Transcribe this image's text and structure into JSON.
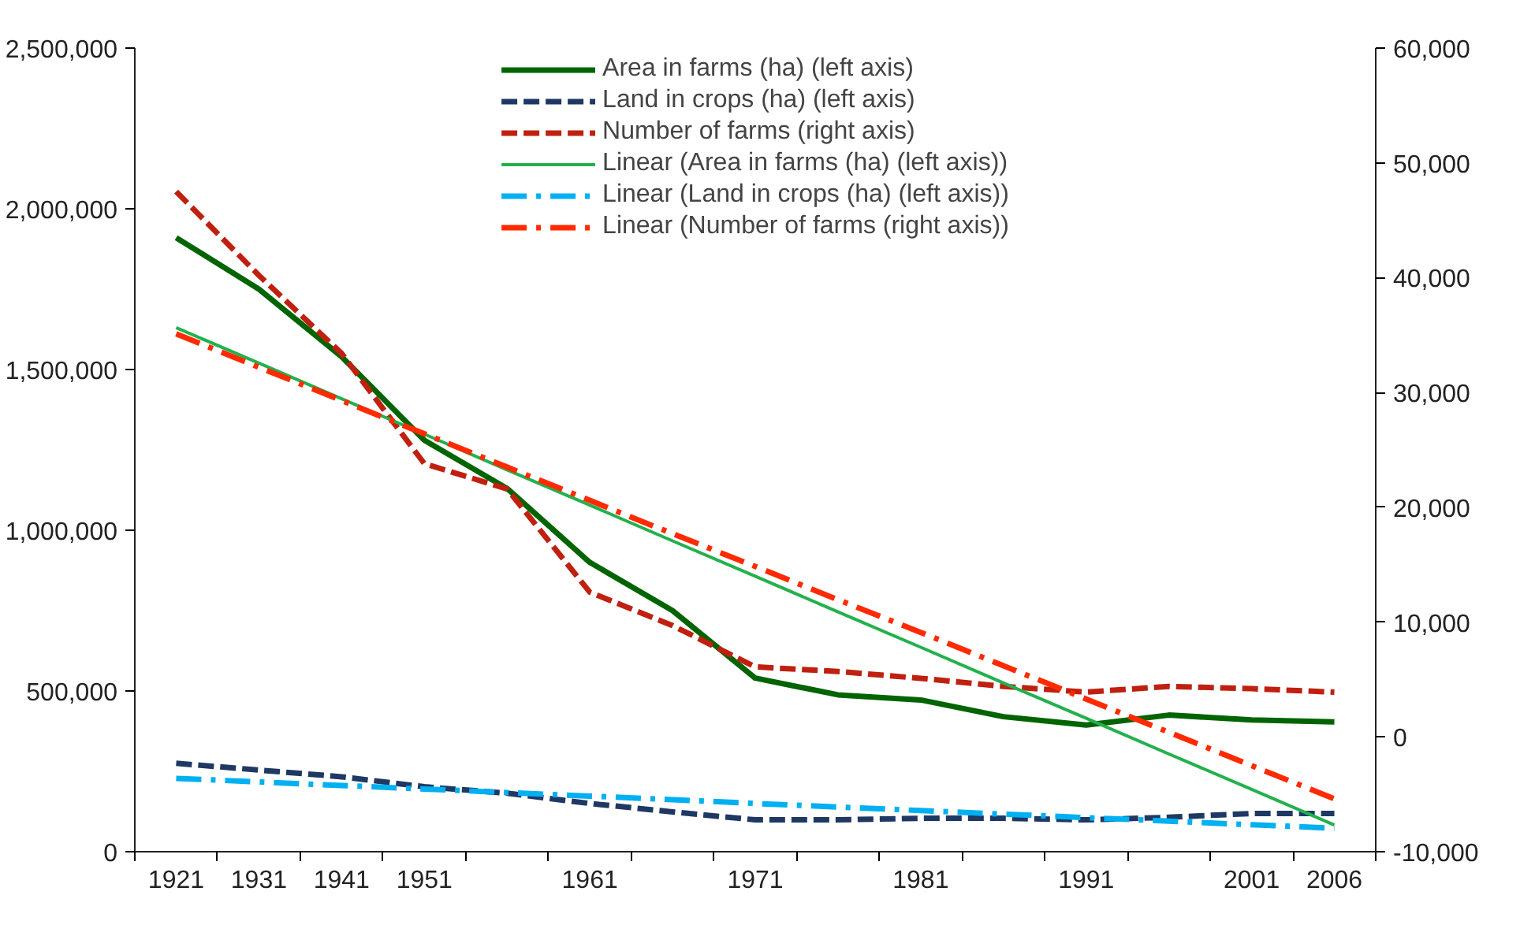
{
  "chart_data": {
    "type": "line",
    "categories": [
      "1921",
      "1931",
      "1941",
      "1951",
      null,
      "1961",
      null,
      "1971",
      null,
      "1981",
      null,
      "1991",
      null,
      "2001",
      "2006"
    ],
    "series": [
      {
        "name": "Area in farms (ha) (left axis)",
        "color": "#006400",
        "line_style": "solid",
        "values": [
          1910000,
          1750000,
          1540000,
          1280000,
          1130000,
          900000,
          750000,
          540000,
          488000,
          472000,
          420000,
          394000,
          425000,
          410000,
          404000
        ]
      },
      {
        "name": "Land in crops (ha) (left axis)",
        "color": "#1f3864",
        "line_style": "dashed",
        "values": [
          275000,
          254000,
          233000,
          202000,
          182000,
          150000,
          124000,
          99000,
          99000,
          104000,
          104000,
          99000,
          107000,
          119000,
          119000
        ]
      },
      {
        "name": "Number of farms (right axis)",
        "color": "#c0200f",
        "line_style": "dashed",
        "axis": "y2",
        "values": [
          47500,
          40200,
          33400,
          23800,
          21600,
          12600,
          9700,
          6100,
          5700,
          5100,
          4400,
          3900,
          4400,
          4200,
          3900
        ]
      },
      {
        "name": "Linear (Area in farms (ha) (left axis))",
        "color": "#22b14c",
        "line_style": "solid",
        "values": [
          1630000,
          1520000,
          1409000,
          1299000,
          1188000,
          1078000,
          967000,
          857000,
          746000,
          636000,
          525000,
          415000,
          304000,
          194000,
          83000
        ]
      },
      {
        "name": "Linear (Land in crops (ha) (left axis))",
        "color": "#00b0f0",
        "line_style": "dashdot",
        "values": [
          228000,
          217000,
          206000,
          195000,
          184000,
          173000,
          162000,
          150000,
          139000,
          128000,
          117000,
          106000,
          95000,
          84000,
          73000
        ]
      },
      {
        "name": "Linear (Number of farms (right axis))",
        "color": "#ff2a00",
        "line_style": "dashdot",
        "axis": "y2",
        "values": [
          35100,
          32200,
          29300,
          26400,
          23500,
          20600,
          17700,
          14850,
          11950,
          9100,
          6200,
          3300,
          400,
          -2500,
          -5400
        ]
      }
    ],
    "ylim": [
      0,
      2500000
    ],
    "yticks": [
      0,
      {
        "value": 500000,
        "label": "500,000"
      },
      {
        "value": 1000000,
        "label": "1,000,000"
      },
      {
        "value": 1500000,
        "label": "1,500,000"
      },
      {
        "value": 2000000,
        "label": "2,000,000"
      },
      {
        "value": 2500000,
        "label": "2,500,000"
      }
    ],
    "y2lim": [
      -10000,
      60000
    ],
    "y2ticks": [
      {
        "value": -10000,
        "label": "-10,000"
      },
      0,
      {
        "value": 10000,
        "label": "10,000"
      },
      {
        "value": 20000,
        "label": "20,000"
      },
      {
        "value": 30000,
        "label": "30,000"
      },
      {
        "value": 40000,
        "label": "40,000"
      },
      {
        "value": 50000,
        "label": "50,000"
      },
      {
        "value": 60000,
        "label": "60,000"
      }
    ],
    "grid": false,
    "legend": "top",
    "marker": "none"
  }
}
